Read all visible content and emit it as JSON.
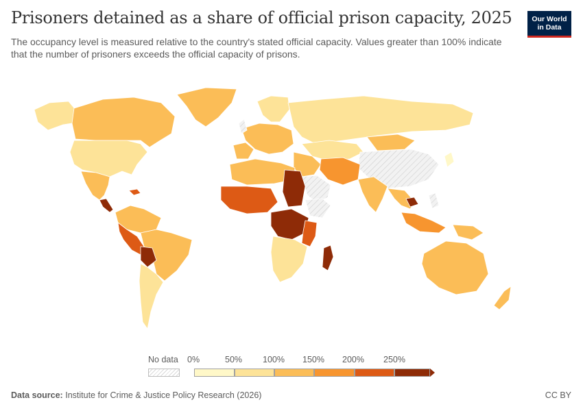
{
  "title": "Prisoners detained as a share of official prison capacity, 2025",
  "subtitle": "The occupancy level is measured relative to the country's stated official capacity. Values greater than 100% indicate that the number of prisoners exceeds the official capacity of prisons.",
  "logo": {
    "line1": "Our World",
    "line2": "in Data"
  },
  "colors": {
    "bin0": "#fff8c8",
    "bin1": "#fde398",
    "bin2": "#fbbd57",
    "bin3": "#f7952f",
    "bin4": "#dd5a15",
    "bin5": "#8e2b07",
    "nodata": "#ededed",
    "border": "#ffffff"
  },
  "legend": {
    "nodata_label": "No data",
    "bins": [
      {
        "label": "0%",
        "color": "#fff8c8"
      },
      {
        "label": "50%",
        "color": "#fde398"
      },
      {
        "label": "100%",
        "color": "#fbbd57"
      },
      {
        "label": "150%",
        "color": "#f7952f"
      },
      {
        "label": "200%",
        "color": "#dd5a15"
      },
      {
        "label": "250%",
        "color": "#8e2b07"
      }
    ]
  },
  "footer": {
    "source_label": "Data source:",
    "source_text": "Institute for Crime & Justice Policy Research (2026)"
  },
  "license": "CC BY"
}
